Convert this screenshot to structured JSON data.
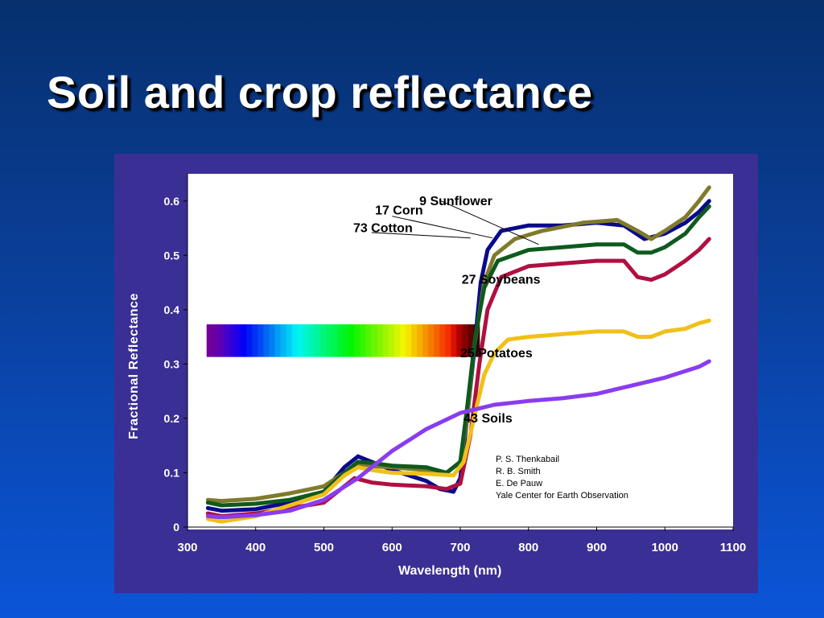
{
  "slide": {
    "title": "Soil and crop reflectance"
  },
  "credits": [
    "P. S. Thenkabail",
    "R. B. Smith",
    "E. De Pauw",
    "Yale Center for Earth Observation"
  ],
  "colors": {
    "background_top": "#06306e",
    "background_bottom": "#0b55d8",
    "panel": "#3a2f94",
    "plot": "#ffffff"
  },
  "chart_data": {
    "type": "line",
    "xlabel": "Wavelength (nm)",
    "ylabel": "Fractional Reflectance",
    "xlim": [
      300,
      1100
    ],
    "ylim": [
      0,
      0.65
    ],
    "x_ticks": [
      300,
      400,
      500,
      600,
      700,
      800,
      900,
      1000,
      1100
    ],
    "y_ticks": [
      0,
      0.1,
      0.2,
      0.3,
      0.4,
      0.5,
      0.6
    ],
    "y_tick_labels": [
      "0",
      "0.1",
      "0.2",
      "0.3",
      "0.4",
      "0.5",
      "0.6"
    ],
    "grid": false,
    "visible_spectrum_band": {
      "x_range": [
        328,
        728
      ],
      "y_range": [
        0.313,
        0.373
      ]
    },
    "series": [
      {
        "name": "9 Sunflower",
        "color": "#0a0a8c",
        "points": [
          [
            330,
            0.035
          ],
          [
            350,
            0.03
          ],
          [
            400,
            0.033
          ],
          [
            450,
            0.045
          ],
          [
            500,
            0.065
          ],
          [
            530,
            0.11
          ],
          [
            550,
            0.13
          ],
          [
            570,
            0.12
          ],
          [
            600,
            0.105
          ],
          [
            650,
            0.085
          ],
          [
            670,
            0.07
          ],
          [
            690,
            0.065
          ],
          [
            700,
            0.09
          ],
          [
            710,
            0.2
          ],
          [
            720,
            0.32
          ],
          [
            730,
            0.45
          ],
          [
            740,
            0.51
          ],
          [
            760,
            0.545
          ],
          [
            800,
            0.555
          ],
          [
            850,
            0.555
          ],
          [
            900,
            0.56
          ],
          [
            940,
            0.555
          ],
          [
            970,
            0.53
          ],
          [
            1000,
            0.54
          ],
          [
            1030,
            0.56
          ],
          [
            1050,
            0.58
          ],
          [
            1065,
            0.6
          ]
        ]
      },
      {
        "name": "17 Corn",
        "color": "#807a2c",
        "points": [
          [
            330,
            0.05
          ],
          [
            350,
            0.048
          ],
          [
            400,
            0.052
          ],
          [
            450,
            0.062
          ],
          [
            500,
            0.075
          ],
          [
            530,
            0.1
          ],
          [
            550,
            0.115
          ],
          [
            570,
            0.112
          ],
          [
            600,
            0.11
          ],
          [
            650,
            0.105
          ],
          [
            680,
            0.1
          ],
          [
            700,
            0.12
          ],
          [
            710,
            0.2
          ],
          [
            720,
            0.33
          ],
          [
            735,
            0.45
          ],
          [
            750,
            0.5
          ],
          [
            780,
            0.53
          ],
          [
            820,
            0.545
          ],
          [
            880,
            0.56
          ],
          [
            930,
            0.565
          ],
          [
            960,
            0.545
          ],
          [
            980,
            0.53
          ],
          [
            1000,
            0.545
          ],
          [
            1030,
            0.57
          ],
          [
            1050,
            0.6
          ],
          [
            1065,
            0.625
          ]
        ]
      },
      {
        "name": "73 Cotton",
        "color": "#0e5a1e",
        "points": [
          [
            330,
            0.045
          ],
          [
            350,
            0.04
          ],
          [
            400,
            0.043
          ],
          [
            450,
            0.05
          ],
          [
            500,
            0.065
          ],
          [
            530,
            0.1
          ],
          [
            550,
            0.12
          ],
          [
            570,
            0.118
          ],
          [
            600,
            0.113
          ],
          [
            650,
            0.11
          ],
          [
            680,
            0.1
          ],
          [
            700,
            0.12
          ],
          [
            710,
            0.22
          ],
          [
            722,
            0.35
          ],
          [
            735,
            0.44
          ],
          [
            755,
            0.49
          ],
          [
            800,
            0.51
          ],
          [
            850,
            0.515
          ],
          [
            900,
            0.52
          ],
          [
            940,
            0.52
          ],
          [
            960,
            0.505
          ],
          [
            980,
            0.505
          ],
          [
            1000,
            0.515
          ],
          [
            1030,
            0.54
          ],
          [
            1050,
            0.57
          ],
          [
            1065,
            0.59
          ]
        ]
      },
      {
        "name": "27 Soybeans",
        "color": "#b01040",
        "points": [
          [
            330,
            0.025
          ],
          [
            350,
            0.02
          ],
          [
            400,
            0.025
          ],
          [
            450,
            0.035
          ],
          [
            500,
            0.045
          ],
          [
            525,
            0.07
          ],
          [
            545,
            0.09
          ],
          [
            570,
            0.082
          ],
          [
            600,
            0.078
          ],
          [
            650,
            0.075
          ],
          [
            680,
            0.07
          ],
          [
            700,
            0.08
          ],
          [
            715,
            0.17
          ],
          [
            728,
            0.3
          ],
          [
            740,
            0.4
          ],
          [
            760,
            0.46
          ],
          [
            800,
            0.48
          ],
          [
            850,
            0.485
          ],
          [
            900,
            0.49
          ],
          [
            940,
            0.49
          ],
          [
            960,
            0.46
          ],
          [
            980,
            0.455
          ],
          [
            1000,
            0.465
          ],
          [
            1030,
            0.49
          ],
          [
            1050,
            0.51
          ],
          [
            1065,
            0.53
          ]
        ]
      },
      {
        "name": "25 Potatoes",
        "color": "#f0c018",
        "points": [
          [
            330,
            0.015
          ],
          [
            350,
            0.01
          ],
          [
            400,
            0.02
          ],
          [
            450,
            0.04
          ],
          [
            500,
            0.06
          ],
          [
            530,
            0.095
          ],
          [
            550,
            0.11
          ],
          [
            570,
            0.105
          ],
          [
            600,
            0.1
          ],
          [
            650,
            0.098
          ],
          [
            690,
            0.095
          ],
          [
            705,
            0.12
          ],
          [
            720,
            0.2
          ],
          [
            735,
            0.28
          ],
          [
            750,
            0.32
          ],
          [
            770,
            0.345
          ],
          [
            800,
            0.35
          ],
          [
            850,
            0.355
          ],
          [
            900,
            0.36
          ],
          [
            940,
            0.36
          ],
          [
            960,
            0.35
          ],
          [
            980,
            0.35
          ],
          [
            1000,
            0.36
          ],
          [
            1030,
            0.365
          ],
          [
            1050,
            0.375
          ],
          [
            1065,
            0.38
          ]
        ]
      },
      {
        "name": "43 Soils",
        "color": "#8a3cf0",
        "points": [
          [
            330,
            0.02
          ],
          [
            350,
            0.018
          ],
          [
            400,
            0.022
          ],
          [
            450,
            0.03
          ],
          [
            500,
            0.05
          ],
          [
            550,
            0.09
          ],
          [
            600,
            0.14
          ],
          [
            650,
            0.18
          ],
          [
            700,
            0.21
          ],
          [
            750,
            0.225
          ],
          [
            800,
            0.232
          ],
          [
            850,
            0.237
          ],
          [
            900,
            0.245
          ],
          [
            950,
            0.26
          ],
          [
            1000,
            0.275
          ],
          [
            1050,
            0.295
          ],
          [
            1065,
            0.305
          ]
        ]
      }
    ],
    "annotations": [
      {
        "text": "9 Sunflower",
        "x": 640,
        "y": 0.6
      },
      {
        "text": "17 Corn",
        "x": 575,
        "y": 0.583
      },
      {
        "text": "73 Cotton",
        "x": 543,
        "y": 0.55
      },
      {
        "text": "27 Soybeans",
        "x": 702,
        "y": 0.455
      },
      {
        "text": "25 Potatoes",
        "x": 700,
        "y": 0.32
      },
      {
        "text": "43 Soils",
        "x": 705,
        "y": 0.2
      }
    ],
    "leader_lines": [
      {
        "from": [
          600,
          0.572
        ],
        "to": [
          747,
          0.532
        ]
      },
      {
        "from": [
          570,
          0.542
        ],
        "to": [
          715,
          0.532
        ]
      },
      {
        "from": [
          672,
          0.6
        ],
        "to": [
          815,
          0.52
        ]
      }
    ]
  }
}
